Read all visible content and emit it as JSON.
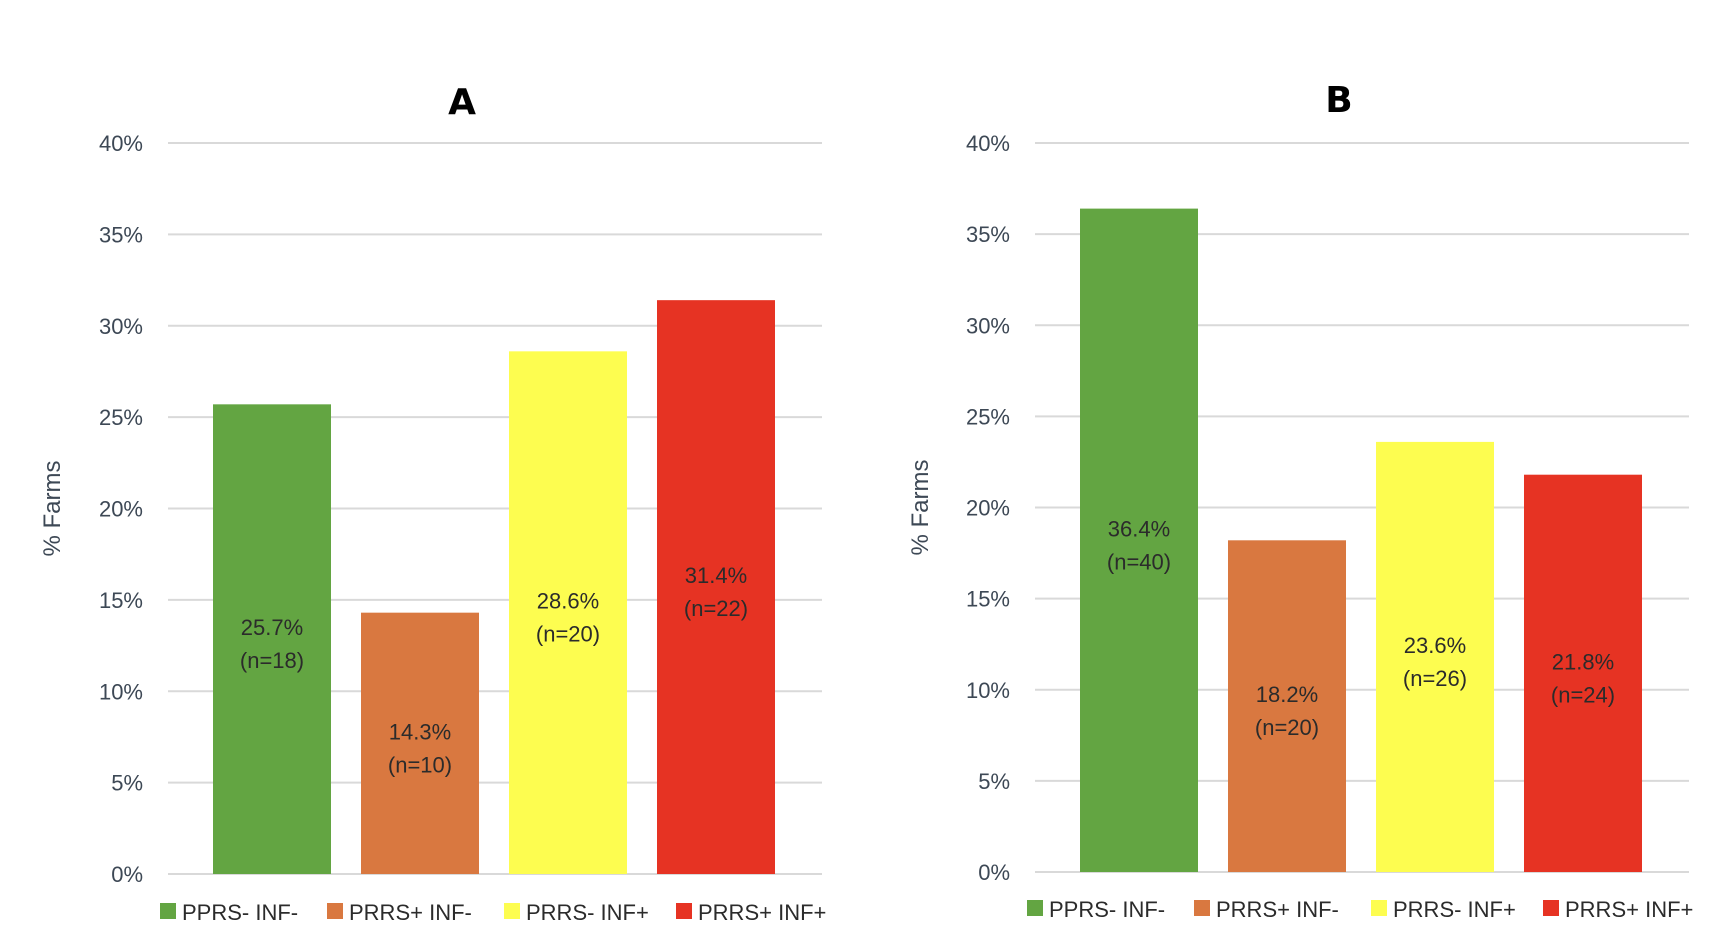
{
  "chart_data": [
    {
      "type": "bar",
      "title": "A",
      "ylabel": "% Farms",
      "xlabel": "",
      "ylim": [
        0,
        40
      ],
      "yticks": [
        "0%",
        "5%",
        "10%",
        "15%",
        "20%",
        "25%",
        "30%",
        "35%",
        "40%"
      ],
      "categories": [
        "PPRS- INF-",
        "PRRS+ INF-",
        "PRRS- INF+",
        "PRRS+ INF+"
      ],
      "values": [
        25.7,
        14.3,
        28.6,
        31.4
      ],
      "labels": [
        "25.7%",
        "14.3%",
        "28.6%",
        "31.4%"
      ],
      "counts": [
        "(n=18)",
        "(n=10)",
        "(n=20)",
        "(n=22)"
      ],
      "colors": [
        "#63a542",
        "#d97840",
        "#fdfd50",
        "#e63323"
      ],
      "grid": true,
      "legend": "bottom"
    },
    {
      "type": "bar",
      "title": "B",
      "ylabel": "% Farms",
      "xlabel": "",
      "ylim": [
        0,
        40
      ],
      "yticks": [
        "0%",
        "5%",
        "10%",
        "15%",
        "20%",
        "25%",
        "30%",
        "35%",
        "40%"
      ],
      "categories": [
        "PPRS- INF-",
        "PRRS+ INF-",
        "PRRS- INF+",
        "PRRS+ INF+"
      ],
      "values": [
        36.4,
        18.2,
        23.6,
        21.8
      ],
      "labels": [
        "36.4%",
        "18.2%",
        "23.6%",
        "21.8%"
      ],
      "counts": [
        "(n=40)",
        "(n=20)",
        "(n=26)",
        "(n=24)"
      ],
      "colors": [
        "#63a542",
        "#d97840",
        "#fdfd50",
        "#e63323"
      ],
      "grid": true,
      "legend": "bottom"
    }
  ]
}
